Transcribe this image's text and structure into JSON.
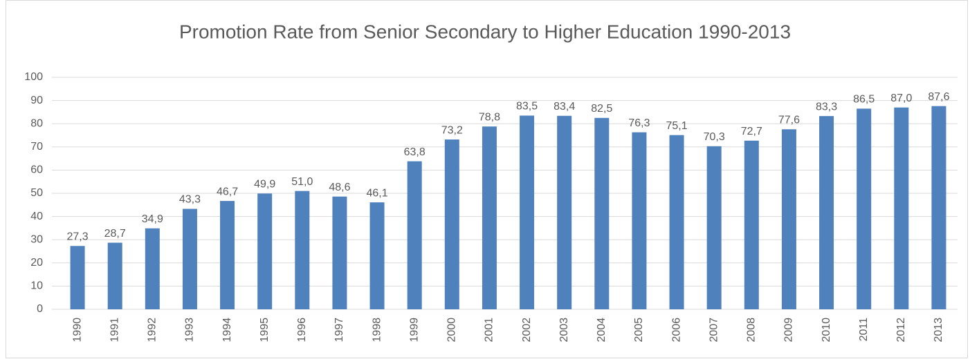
{
  "chart_data": {
    "type": "bar",
    "title": "Promotion Rate from Senior Secondary to Higher Education 1990-2013",
    "categories": [
      "1990",
      "1991",
      "1992",
      "1993",
      "1994",
      "1995",
      "1996",
      "1997",
      "1998",
      "1999",
      "2000",
      "2001",
      "2002",
      "2003",
      "2004",
      "2005",
      "2006",
      "2007",
      "2008",
      "2009",
      "2010",
      "2011",
      "2012",
      "2013"
    ],
    "values": [
      27.3,
      28.7,
      34.9,
      43.3,
      46.7,
      49.9,
      51.0,
      48.6,
      46.1,
      63.8,
      73.2,
      78.8,
      83.5,
      83.4,
      82.5,
      76.3,
      75.1,
      70.3,
      72.7,
      77.6,
      83.3,
      86.5,
      87.0,
      87.6
    ],
    "value_labels": [
      "27,3",
      "28,7",
      "34,9",
      "43,3",
      "46,7",
      "49,9",
      "51,0",
      "48,6",
      "46,1",
      "63,8",
      "73,2",
      "78,8",
      "83,5",
      "83,4",
      "82,5",
      "76,3",
      "75,1",
      "70,3",
      "72,7",
      "77,6",
      "83,3",
      "86,5",
      "87,0",
      "87,6"
    ],
    "color": "#4f81bd",
    "ylim": [
      0,
      100
    ],
    "yticks": [
      0,
      10,
      20,
      30,
      40,
      50,
      60,
      70,
      80,
      90,
      100
    ],
    "grid": true
  }
}
